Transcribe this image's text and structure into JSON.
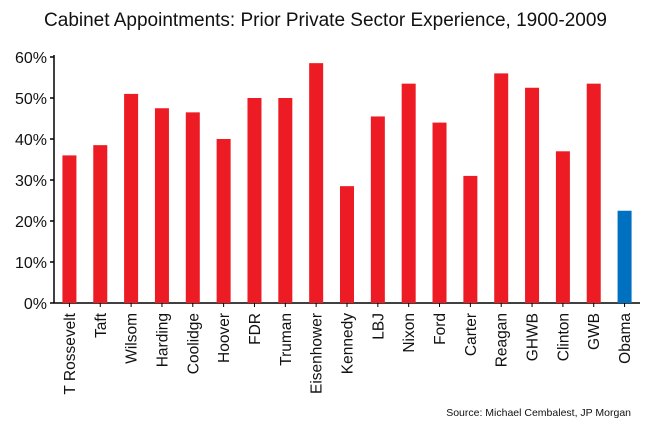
{
  "title": "Cabinet Appointments: Prior Private Sector Experience, 1900-2009",
  "source": "Source: Michael Cembalest, JP Morgan",
  "chart_data": {
    "type": "bar",
    "title": "Cabinet Appointments: Prior Private Sector Experience, 1900-2009",
    "categories": [
      "T Rossevelt",
      "Taft",
      "Wilsom",
      "Harding",
      "Coolidge",
      "Hoover",
      "FDR",
      "Truman",
      "Eisenhower",
      "Kennedy",
      "LBJ",
      "Nixon",
      "Ford",
      "Carter",
      "Reagan",
      "GHWB",
      "Clinton",
      "GWB",
      "Obama"
    ],
    "values": [
      36,
      38.5,
      51,
      47.5,
      46.5,
      40,
      50,
      50,
      58.5,
      28.5,
      45.5,
      53.5,
      44,
      31,
      56,
      52.5,
      37,
      53.5,
      22.5
    ],
    "colors": [
      "#ed1c24",
      "#ed1c24",
      "#ed1c24",
      "#ed1c24",
      "#ed1c24",
      "#ed1c24",
      "#ed1c24",
      "#ed1c24",
      "#ed1c24",
      "#ed1c24",
      "#ed1c24",
      "#ed1c24",
      "#ed1c24",
      "#ed1c24",
      "#ed1c24",
      "#ed1c24",
      "#ed1c24",
      "#ed1c24",
      "#0070c0"
    ],
    "yticks": [
      "0%",
      "10%",
      "20%",
      "30%",
      "40%",
      "50%",
      "60%"
    ],
    "ylim": [
      0,
      60
    ],
    "grid": false,
    "legend": "none",
    "xlabel": "",
    "ylabel": ""
  }
}
